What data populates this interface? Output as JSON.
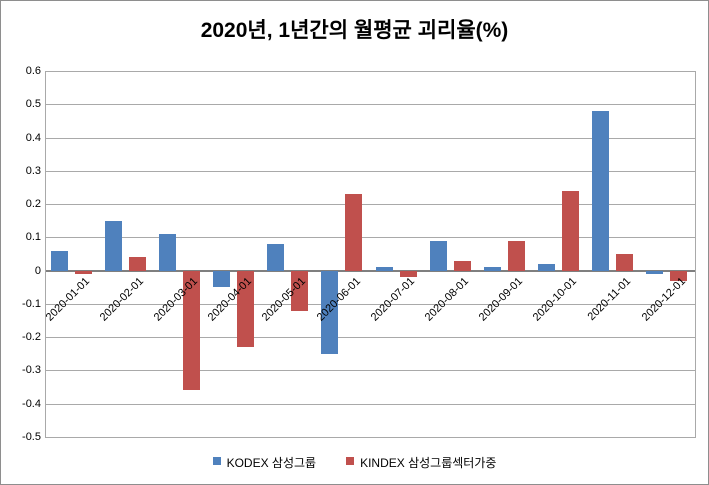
{
  "chart_data": {
    "type": "bar",
    "title": "2020년, 1년간의 월평균 괴리율(%)",
    "categories": [
      "2020-01-01",
      "2020-02-01",
      "2020-03-01",
      "2020-04-01",
      "2020-05-01",
      "2020-06-01",
      "2020-07-01",
      "2020-08-01",
      "2020-09-01",
      "2020-10-01",
      "2020-11-01",
      "2020-12-01"
    ],
    "series": [
      {
        "name": "KODEX 삼성그룹",
        "color": "#4F81BD",
        "values": [
          0.06,
          0.15,
          0.11,
          -0.05,
          0.08,
          -0.25,
          0.01,
          0.09,
          0.01,
          0.02,
          0.48,
          -0.01
        ]
      },
      {
        "name": "KINDEX 삼성그룹섹터가중",
        "color": "#C0504D",
        "values": [
          -0.01,
          0.04,
          -0.36,
          -0.23,
          -0.12,
          0.23,
          -0.02,
          0.03,
          0.09,
          0.24,
          0.05,
          -0.03
        ]
      }
    ],
    "ylim": [
      -0.5,
      0.6
    ],
    "ytick_step": 0.1,
    "ytick_labels": [
      "0.6",
      "0.5",
      "0.4",
      "0.3",
      "0.2",
      "0.1",
      "0",
      "-0.1",
      "-0.2",
      "-0.3",
      "-0.4",
      "-0.5"
    ],
    "grid": true,
    "legend_position": "bottom",
    "xlabel": "",
    "ylabel": ""
  },
  "colors": {
    "series_blue": "#4F81BD",
    "series_red": "#C0504D",
    "gridline": "#a9a9a9",
    "zero_axis": "#7f7f7f",
    "border": "#8e8e8e",
    "text": "#000000"
  }
}
